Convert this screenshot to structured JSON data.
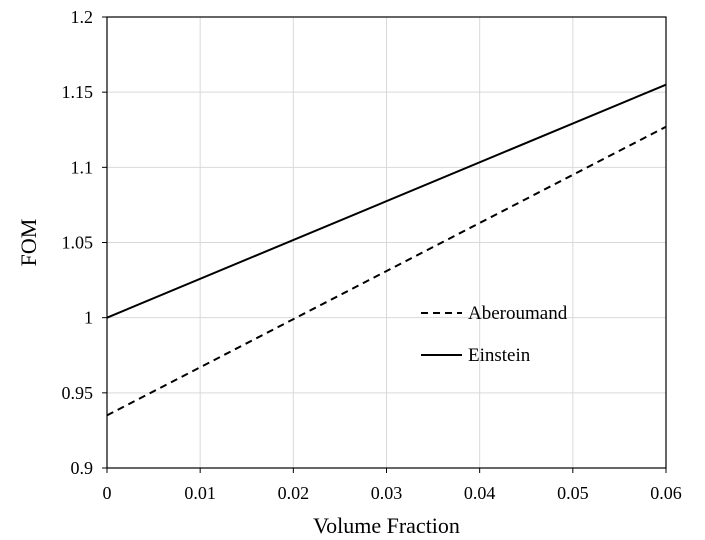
{
  "chart_data": {
    "type": "line",
    "title": "",
    "xlabel": "Volume Fraction",
    "ylabel": "FOM",
    "xlim": [
      0,
      0.06
    ],
    "ylim": [
      0.9,
      1.2
    ],
    "xticks": [
      "0",
      "0.01",
      "0.02",
      "0.03",
      "0.04",
      "0.05",
      "0.06"
    ],
    "yticks": [
      "0.9",
      "0.95",
      "1",
      "1.05",
      "1.1",
      "1.15",
      "1.2"
    ],
    "grid": true,
    "legend_position": "center-right",
    "series": [
      {
        "name": "Aberoumand",
        "style": "dashed",
        "color": "#000000",
        "x": [
          0,
          0.06
        ],
        "y": [
          0.935,
          1.127
        ]
      },
      {
        "name": "Einstein",
        "style": "solid",
        "color": "#000000",
        "x": [
          0,
          0.06
        ],
        "y": [
          1.0,
          1.155
        ]
      }
    ]
  }
}
